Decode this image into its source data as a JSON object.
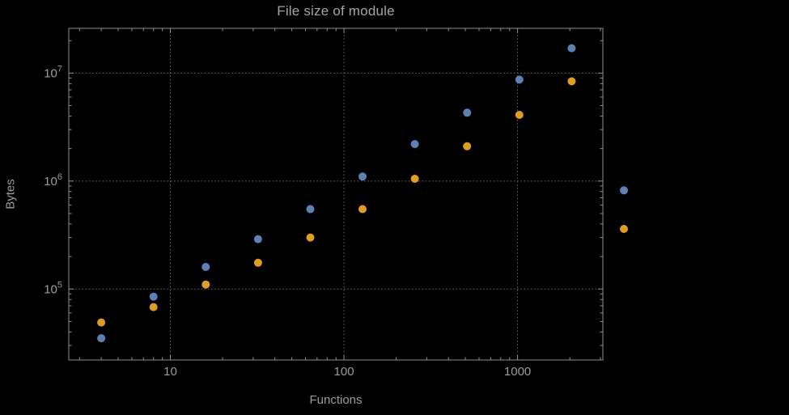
{
  "chart_data": {
    "type": "scatter",
    "title": "File size of module",
    "xlabel": "Functions",
    "ylabel": "Bytes",
    "x_scale": "log",
    "y_scale": "log",
    "xlim": [
      2.6,
      3100
    ],
    "ylim": [
      22000,
      26000000
    ],
    "grid": true,
    "legend": "none",
    "x_ticks": [
      {
        "value": 10,
        "label": "10"
      },
      {
        "value": 100,
        "label": "100"
      },
      {
        "value": 1000,
        "label": "1000"
      }
    ],
    "y_ticks": [
      {
        "value": 100000,
        "label": "10^5"
      },
      {
        "value": 1000000,
        "label": "10^6"
      },
      {
        "value": 10000000,
        "label": "10^7"
      }
    ],
    "series": [
      {
        "id": "series-1",
        "color": "#5e81b5",
        "points": [
          [
            4,
            35000
          ],
          [
            8,
            85000
          ],
          [
            16,
            160000
          ],
          [
            32,
            290000
          ],
          [
            64,
            550000
          ],
          [
            128,
            1100000
          ],
          [
            256,
            2200000
          ],
          [
            512,
            4300000
          ],
          [
            1024,
            8700000
          ],
          [
            2048,
            17000000
          ],
          [
            4096,
            820000
          ]
        ]
      },
      {
        "id": "series-2",
        "color": "#e19c24",
        "points": [
          [
            4,
            49000
          ],
          [
            8,
            68000
          ],
          [
            16,
            110000
          ],
          [
            32,
            175000
          ],
          [
            64,
            300000
          ],
          [
            128,
            550000
          ],
          [
            256,
            1050000
          ],
          [
            512,
            2100000
          ],
          [
            1024,
            4100000
          ],
          [
            2048,
            8400000
          ],
          [
            4096,
            360000
          ]
        ]
      }
    ]
  },
  "style": {
    "background": "#000000",
    "frame_color": "#8f8f8f",
    "grid_color": "#616161",
    "text_color": "#9c9c9c"
  }
}
